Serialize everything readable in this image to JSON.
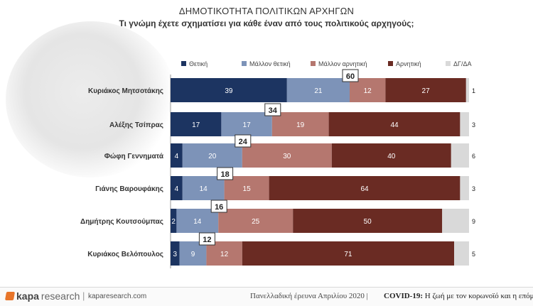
{
  "header": {
    "title": "ΔΗΜΟΤΙΚΟΤΗΤΑ ΠΟΛΙΤΙΚΩΝ ΑΡΧΗΓΩΝ",
    "subtitle": "Τι γνώμη έχετε σχηματίσει για κάθε έναν από τους πολιτικούς αρχηγούς;"
  },
  "chart_data": {
    "type": "bar",
    "stacked": true,
    "orientation": "horizontal",
    "title": "ΔΗΜΟΤΙΚΟΤΗΤΑ ΠΟΛΙΤΙΚΩΝ ΑΡΧΗΓΩΝ",
    "subtitle": "Τι γνώμη έχετε σχηματίσει για κάθε έναν από τους πολιτικούς αρχηγούς;",
    "legend_position": "top",
    "grid": false,
    "categories": [
      "Κυριάκος Μητσοτάκης",
      "Αλέξης Τσίπρας",
      "Φώφη Γεννηματά",
      "Γιάνης Βαρουφάκης",
      "Δημήτρης Κουτσούμπας",
      "Κυριάκος Βελόπουλος"
    ],
    "series": [
      {
        "name": "Θετική",
        "color": "#1c3461",
        "values": [
          39,
          17,
          4,
          4,
          2,
          3
        ]
      },
      {
        "name": "Μάλλον θετική",
        "color": "#7d93b8",
        "values": [
          21,
          17,
          20,
          14,
          14,
          9
        ]
      },
      {
        "name": "Μάλλον αρνητική",
        "color": "#b5776f",
        "values": [
          12,
          19,
          30,
          15,
          25,
          12
        ]
      },
      {
        "name": "Αρνητική",
        "color": "#6a2b23",
        "values": [
          27,
          44,
          40,
          64,
          50,
          71
        ]
      },
      {
        "name": "ΔΓ/ΔΑ",
        "color": "#d9d9d9",
        "values": [
          1,
          3,
          6,
          3,
          9,
          5
        ]
      }
    ],
    "positive_totals": [
      60,
      34,
      24,
      18,
      16,
      12
    ]
  },
  "footer": {
    "logo_main": "kapa",
    "logo_sub": "research",
    "separator": "|",
    "site": "kaparesearch.com",
    "survey": "Πανελλαδική έρευνα Απριλίου 2020 |",
    "covid_bold": "COVID-19:",
    "covid_rest": " Η ζωή με τον κορωνοϊό και η επόμενη"
  }
}
